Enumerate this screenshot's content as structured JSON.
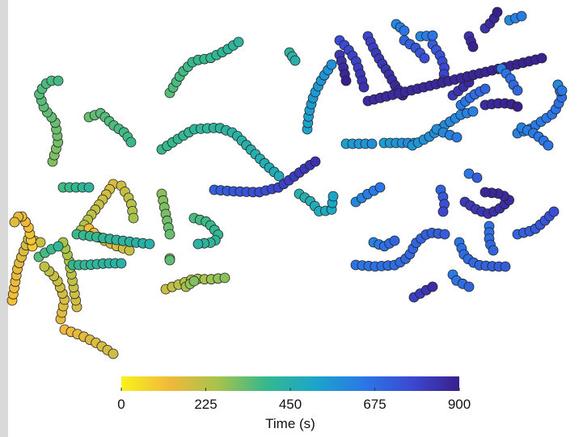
{
  "chart_data": {
    "type": "scatter",
    "title": "",
    "xlabel": "",
    "ylabel": "",
    "axes_visible": false,
    "marker": "circle",
    "marker_edge": "#222222",
    "colormap": {
      "name": "parula-reversed",
      "stops": [
        "#f8f21c",
        "#f1b93b",
        "#a6c34c",
        "#36b88c",
        "#1ba6c9",
        "#2a79e7",
        "#3c49d3",
        "#3a1f8c"
      ],
      "range": [
        0,
        900
      ],
      "ticks": [
        "0",
        "225",
        "450",
        "675",
        "900"
      ],
      "tick_values": [
        0,
        225,
        450,
        675,
        900
      ],
      "label": "Time (s)"
    },
    "trajectories": [
      {
        "t": [
          110,
          200
        ],
        "points": [
          [
            15,
            372
          ],
          [
            22,
            330
          ],
          [
            35,
            296
          ],
          [
            50,
            300
          ]
        ]
      },
      {
        "t": [
          90,
          160
        ],
        "points": [
          [
            40,
            305
          ],
          [
            35,
            280
          ],
          [
            25,
            265
          ],
          [
            18,
            275
          ]
        ]
      },
      {
        "t": [
          130,
          190
        ],
        "points": [
          [
            80,
            408
          ],
          [
            100,
            415
          ],
          [
            120,
            425
          ],
          [
            140,
            438
          ]
        ]
      },
      {
        "t": [
          150,
          220
        ],
        "points": [
          [
            75,
            395
          ],
          [
            80,
            370
          ],
          [
            70,
            345
          ],
          [
            55,
            330
          ]
        ]
      },
      {
        "t": [
          180,
          260
        ],
        "points": [
          [
            95,
            380
          ],
          [
            90,
            350
          ],
          [
            85,
            320
          ],
          [
            78,
            300
          ]
        ]
      },
      {
        "t": [
          170,
          240
        ],
        "points": [
          [
            140,
            228
          ],
          [
            125,
            250
          ],
          [
            110,
            270
          ],
          [
            100,
            285
          ]
        ]
      },
      {
        "t": [
          120,
          200
        ],
        "points": [
          [
            110,
            283
          ],
          [
            125,
            296
          ],
          [
            145,
            305
          ],
          [
            160,
            310
          ]
        ]
      },
      {
        "t": [
          190,
          260
        ],
        "points": [
          [
            150,
            230
          ],
          [
            162,
            250
          ],
          [
            165,
            270
          ]
        ]
      },
      {
        "t": [
          200,
          290
        ],
        "points": [
          [
            205,
            358
          ],
          [
            222,
            352
          ],
          [
            240,
            345
          ],
          [
            258,
            346
          ],
          [
            278,
            344
          ]
        ]
      },
      {
        "t": [
          290,
          330
        ],
        "points": [
          [
            200,
            240
          ],
          [
            205,
            265
          ],
          [
            210,
            290
          ]
        ]
      },
      {
        "t": [
          300,
          340
        ],
        "points": [
          [
            210,
            320
          ],
          [
            210,
            322
          ]
        ]
      },
      {
        "t": [
          260,
          300
        ],
        "points": [
          [
            230,
            355
          ],
          [
            240,
            348
          ]
        ]
      },
      {
        "t": [
          360,
          430
        ],
        "points": [
          [
            240,
            270
          ],
          [
            257,
            275
          ],
          [
            270,
            290
          ],
          [
            265,
            300
          ],
          [
            245,
            302
          ]
        ]
      },
      {
        "t": [
          370,
          420
        ],
        "points": [
          [
            78,
            232
          ],
          [
            95,
            232
          ],
          [
            110,
            232
          ]
        ]
      },
      {
        "t": [
          380,
          450
        ],
        "points": [
          [
            95,
            290
          ],
          [
            130,
            295
          ],
          [
            165,
            300
          ],
          [
            185,
            302
          ]
        ]
      },
      {
        "t": [
          390,
          440
        ],
        "points": [
          [
            90,
            328
          ],
          [
            110,
            328
          ],
          [
            130,
            326
          ],
          [
            150,
            326
          ]
        ]
      },
      {
        "t": [
          350,
          400
        ],
        "points": [
          [
            48,
            318
          ],
          [
            60,
            310
          ],
          [
            72,
            305
          ]
        ]
      },
      {
        "t": [
          300,
          370
        ],
        "points": [
          [
            65,
            200
          ],
          [
            72,
            175
          ],
          [
            68,
            150
          ],
          [
            55,
            135
          ],
          [
            48,
            115
          ],
          [
            60,
            100
          ],
          [
            72,
            100
          ]
        ]
      },
      {
        "t": [
          330,
          380
        ],
        "points": [
          [
            110,
            145
          ],
          [
            125,
            140
          ],
          [
            140,
            155
          ],
          [
            155,
            165
          ],
          [
            162,
            176
          ]
        ]
      },
      {
        "t": [
          350,
          420
        ],
        "points": [
          [
            210,
            115
          ],
          [
            225,
            90
          ],
          [
            240,
            75
          ],
          [
            260,
            72
          ],
          [
            280,
            62
          ],
          [
            295,
            52
          ]
        ]
      },
      {
        "t": [
          380,
          480
        ],
        "points": [
          [
            200,
            185
          ],
          [
            220,
            172
          ],
          [
            240,
            160
          ],
          [
            270,
            158
          ],
          [
            290,
            165
          ],
          [
            310,
            185
          ],
          [
            330,
            205
          ],
          [
            345,
            218
          ]
        ]
      },
      {
        "t": [
          420,
          450
        ],
        "points": [
          [
            358,
            65
          ],
          [
            365,
            75
          ]
        ]
      },
      {
        "t": [
          450,
          520
        ],
        "points": [
          [
            370,
            240
          ],
          [
            385,
            250
          ],
          [
            395,
            262
          ],
          [
            410,
            260
          ],
          [
            412,
            243
          ]
        ]
      },
      {
        "t": [
          710,
          840
        ],
        "points": [
          [
            265,
            235
          ],
          [
            290,
            237
          ],
          [
            320,
            238
          ],
          [
            345,
            232
          ],
          [
            362,
            220
          ],
          [
            375,
            210
          ],
          [
            390,
            200
          ]
        ]
      },
      {
        "t": [
          520,
          580
        ],
        "points": [
          [
            380,
            160
          ],
          [
            382,
            140
          ],
          [
            388,
            118
          ],
          [
            398,
            98
          ],
          [
            410,
            80
          ]
        ]
      },
      {
        "t": [
          540,
          580
        ],
        "points": [
          [
            428,
            178
          ],
          [
            448,
            178
          ],
          [
            460,
            178
          ]
        ]
      },
      {
        "t": [
          540,
          600
        ],
        "points": [
          [
            475,
            177
          ],
          [
            495,
            177
          ],
          [
            512,
            177
          ]
        ]
      },
      {
        "t": [
          560,
          620
        ],
        "points": [
          [
            510,
            180
          ],
          [
            530,
            170
          ],
          [
            550,
            155
          ],
          [
            570,
            142
          ],
          [
            585,
            138
          ]
        ]
      },
      {
        "t": [
          600,
          650
        ],
        "points": [
          [
            440,
            250
          ],
          [
            455,
            240
          ],
          [
            470,
            232
          ]
        ]
      },
      {
        "t": [
          650,
          720
        ],
        "points": [
          [
            440,
            328
          ],
          [
            465,
            330
          ],
          [
            490,
            328
          ],
          [
            505,
            318
          ],
          [
            515,
            300
          ],
          [
            530,
            288
          ],
          [
            550,
            290
          ]
        ]
      },
      {
        "t": [
          620,
          700
        ],
        "points": [
          [
            462,
            300
          ],
          [
            475,
            305
          ],
          [
            488,
            298
          ]
        ]
      },
      {
        "t": [
          660,
          720
        ],
        "points": [
          [
            568,
            300
          ],
          [
            575,
            318
          ],
          [
            590,
            328
          ],
          [
            612,
            330
          ],
          [
            625,
            330
          ]
        ]
      },
      {
        "t": [
          640,
          700
        ],
        "points": [
          [
            560,
            340
          ],
          [
            565,
            348
          ],
          [
            580,
            355
          ]
        ]
      },
      {
        "t": [
          700,
          760
        ],
        "points": [
          [
            640,
            290
          ],
          [
            660,
            285
          ],
          [
            672,
            275
          ],
          [
            685,
            262
          ]
        ]
      },
      {
        "t": [
          660,
          700
        ],
        "points": [
          [
            605,
            280
          ],
          [
            605,
            300
          ],
          [
            610,
            310
          ]
        ]
      },
      {
        "t": [
          800,
          850
        ],
        "points": [
          [
            512,
            368
          ],
          [
            522,
            362
          ],
          [
            535,
            355
          ]
        ]
      },
      {
        "t": [
          820,
          880
        ],
        "points": [
          [
            575,
            250
          ],
          [
            590,
            260
          ],
          [
            605,
            265
          ],
          [
            618,
            258
          ],
          [
            630,
            248
          ],
          [
            620,
            240
          ],
          [
            600,
            238
          ]
        ]
      },
      {
        "t": [
          700,
          780
        ],
        "points": [
          [
            545,
            235
          ],
          [
            550,
            250
          ],
          [
            548,
            262
          ]
        ]
      },
      {
        "t": [
          650,
          720
        ],
        "points": [
          [
            580,
            215
          ],
          [
            590,
            220
          ]
        ]
      },
      {
        "t": [
          620,
          680
        ],
        "points": [
          [
            640,
            165
          ],
          [
            655,
            160
          ],
          [
            670,
            150
          ],
          [
            685,
            140
          ],
          [
            695,
            120
          ],
          [
            690,
            105
          ]
        ]
      },
      {
        "t": [
          580,
          640
        ],
        "points": [
          [
            540,
            160
          ],
          [
            550,
            165
          ],
          [
            565,
            170
          ]
        ]
      },
      {
        "t": [
          640,
          700
        ],
        "points": [
          [
            570,
            130
          ],
          [
            585,
            118
          ],
          [
            600,
            110
          ]
        ]
      },
      {
        "t": [
          760,
          840
        ],
        "points": [
          [
            420,
            50
          ],
          [
            430,
            60
          ],
          [
            440,
            75
          ],
          [
            445,
            90
          ],
          [
            450,
            108
          ]
        ]
      },
      {
        "t": [
          780,
          880
        ],
        "points": [
          [
            455,
            45
          ],
          [
            462,
            60
          ],
          [
            470,
            75
          ],
          [
            480,
            90
          ],
          [
            488,
            105
          ],
          [
            498,
            118
          ]
        ]
      },
      {
        "t": [
          820,
          900
        ],
        "points": [
          [
            420,
            68
          ],
          [
            425,
            85
          ],
          [
            428,
            100
          ]
        ]
      },
      {
        "t": [
          700,
          760
        ],
        "points": [
          [
            500,
            50
          ],
          [
            515,
            60
          ],
          [
            525,
            72
          ]
        ]
      },
      {
        "t": [
          720,
          800
        ],
        "points": [
          [
            535,
            55
          ],
          [
            545,
            70
          ],
          [
            550,
            85
          ],
          [
            548,
            100
          ]
        ]
      },
      {
        "t": [
          840,
          890
        ],
        "points": [
          [
            580,
            45
          ],
          [
            585,
            58
          ]
        ]
      },
      {
        "t": [
          600,
          650
        ],
        "points": [
          [
            490,
            30
          ],
          [
            500,
            38
          ]
        ]
      },
      {
        "t": [
          600,
          660
        ],
        "points": [
          [
            520,
            45
          ],
          [
            535,
            44
          ]
        ]
      },
      {
        "t": [
          840,
          900
        ],
        "points": [
          [
            600,
            35
          ],
          [
            610,
            25
          ],
          [
            615,
            15
          ]
        ]
      },
      {
        "t": [
          600,
          640
        ],
        "points": [
          [
            630,
            25
          ],
          [
            645,
            20
          ]
        ]
      },
      {
        "t": [
          860,
          900
        ],
        "points": [
          [
            600,
            130
          ],
          [
            615,
            128
          ],
          [
            630,
            128
          ],
          [
            640,
            132
          ]
        ]
      },
      {
        "t": [
          820,
          870
        ],
        "points": [
          [
            560,
            118
          ],
          [
            570,
            110
          ],
          [
            580,
            102
          ]
        ]
      },
      {
        "t": [
          860,
          890
        ],
        "points": [
          [
            455,
            125
          ],
          [
            670,
            72
          ]
        ]
      },
      {
        "t": [
          640,
          700
        ],
        "points": [
          [
            620,
            85
          ],
          [
            630,
            95
          ],
          [
            635,
            105
          ],
          [
            640,
            112
          ]
        ]
      },
      {
        "t": [
          600,
          640
        ],
        "points": [
          [
            690,
            105
          ],
          [
            695,
            112
          ]
        ]
      },
      {
        "t": [
          620,
          660
        ],
        "points": [
          [
            645,
            158
          ],
          [
            660,
            165
          ],
          [
            670,
            172
          ],
          [
            678,
            180
          ]
        ]
      }
    ]
  }
}
